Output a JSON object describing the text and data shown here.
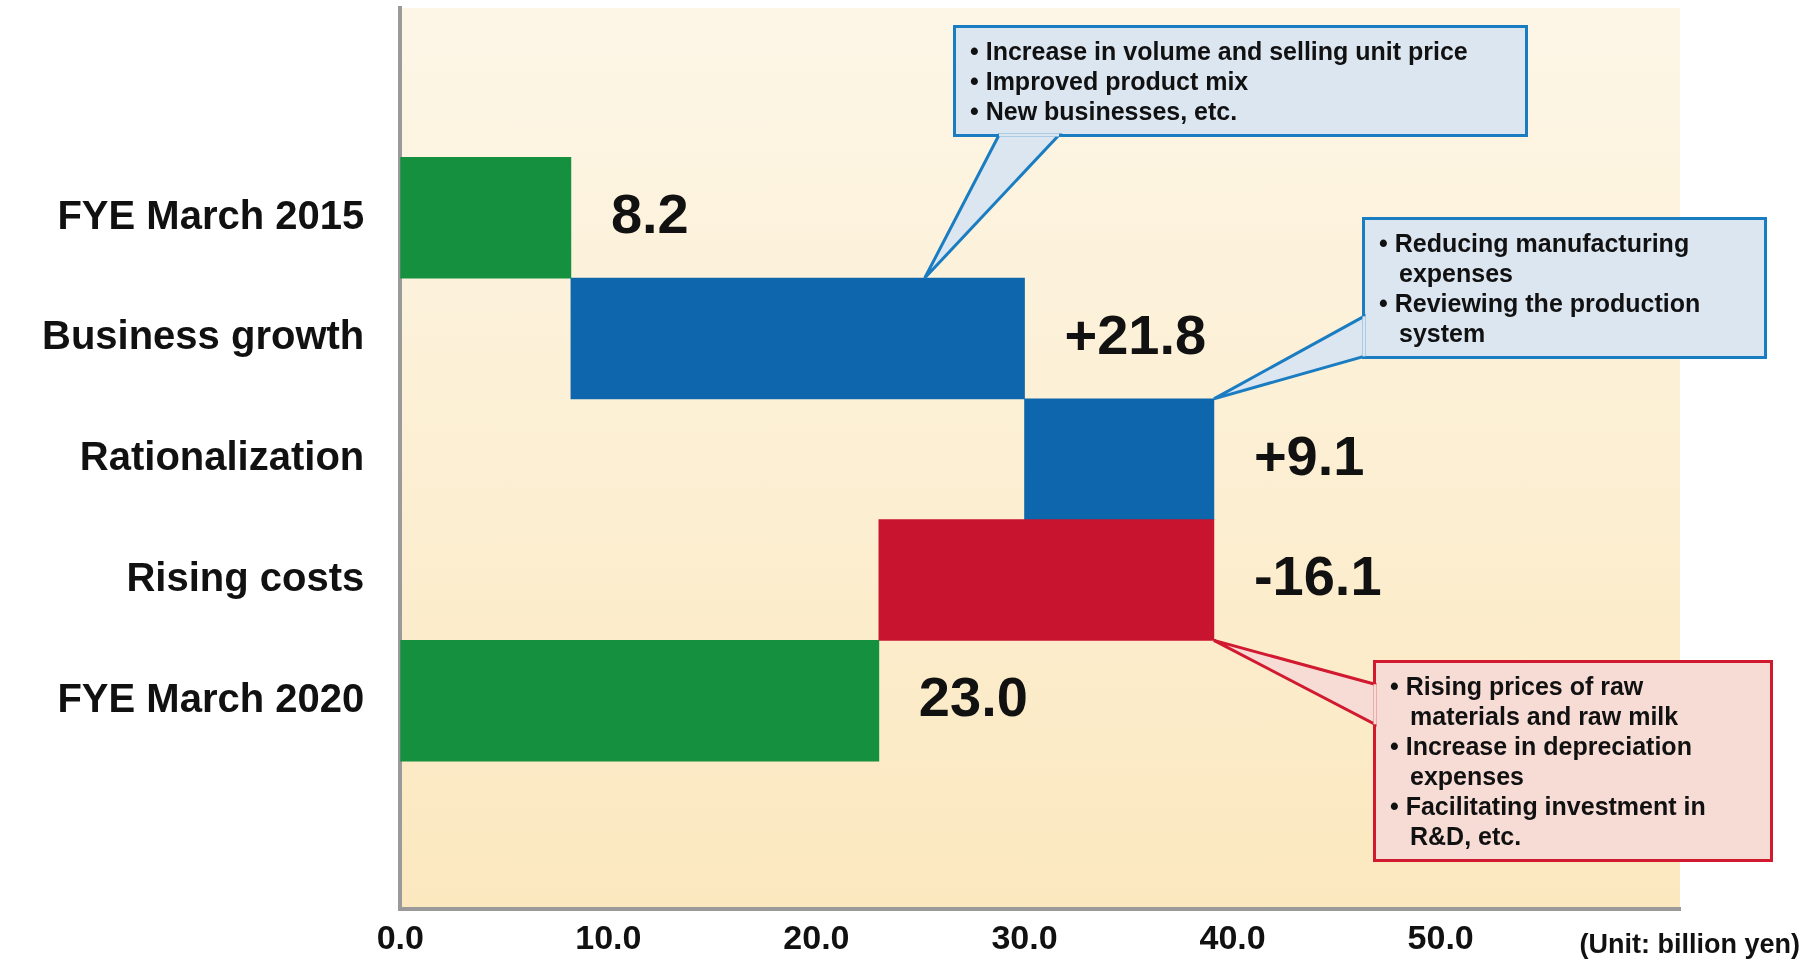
{
  "chart_data": {
    "type": "bar",
    "orientation": "horizontal",
    "xlabel": "(Unit: billion yen)",
    "categories": [
      "FYE March 2015",
      "Business growth",
      "Rationalization",
      "Rising costs",
      "FYE March 2020"
    ],
    "values": [
      8.2,
      21.8,
      9.1,
      -16.1,
      23.0
    ],
    "base": [
      0,
      8.2,
      30.0,
      39.1,
      0
    ],
    "colors": [
      "#14903f",
      "#0e66ad",
      "#0e66ad",
      "#c8142f",
      "#14903f"
    ],
    "value_labels": [
      "8.2",
      "+21.8",
      "+9.1",
      "-16.1",
      "23.0"
    ],
    "xlim": [
      0,
      61.5
    ],
    "xticks": [
      {
        "value": 0,
        "label": "0.0"
      },
      {
        "value": 10,
        "label": "10.0"
      },
      {
        "value": 20,
        "label": "20.0"
      },
      {
        "value": 30,
        "label": "30.0"
      },
      {
        "value": 40,
        "label": "40.0"
      },
      {
        "value": 50,
        "label": "50.0"
      }
    ],
    "annotations": [
      "• Increase in volume and selling unit price\n• Improved product mix\n• New businesses, etc.",
      "• Reducing manufacturing expenses\n• Reviewing the production system",
      "• Rising prices of raw materials and raw milk\n• Increase in depreciation expenses\n• Facilitating investment in R&D, etc."
    ],
    "legend": false
  }
}
